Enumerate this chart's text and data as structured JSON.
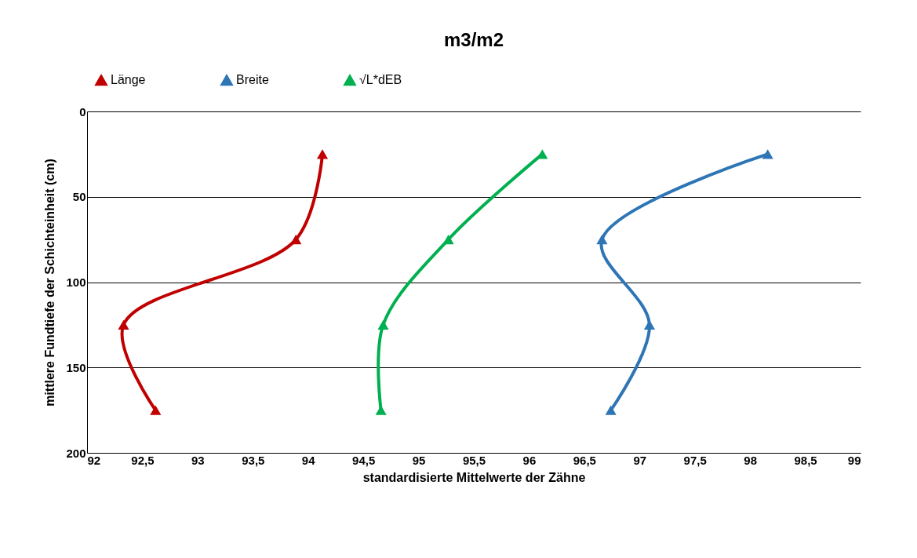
{
  "chart_data": {
    "type": "line",
    "title": "m3/m2",
    "xlabel": "standardisierte Mittelwerte der Zähne",
    "ylabel": "mittlere Fundtiefe der Schichteinheit (cm)",
    "series": [
      {
        "name": "Länge",
        "color": "#c00000",
        "x": [
          94.13,
          93.89,
          92.33,
          92.62
        ],
        "values": [
          25,
          75,
          125,
          175
        ]
      },
      {
        "name": "Breite",
        "color": "#2e75b6",
        "x": [
          98.16,
          96.66,
          97.09,
          96.74
        ],
        "values": [
          25,
          75,
          125,
          175
        ]
      },
      {
        "name": "√L*dEB",
        "color": "#00b050",
        "x": [
          96.12,
          95.27,
          94.68,
          94.66
        ],
        "values": [
          25,
          75,
          125,
          175
        ]
      }
    ],
    "xlim": [
      92,
      99
    ],
    "xticks": [
      92,
      {
        "value": 92.5,
        "label": "92,5"
      },
      93,
      {
        "value": 93.5,
        "label": "93,5"
      },
      94,
      {
        "value": 94.5,
        "label": "94,5"
      },
      95,
      {
        "value": 95.5,
        "label": "95,5"
      },
      96,
      {
        "value": 96.5,
        "label": "96,5"
      },
      97,
      {
        "value": 97.5,
        "label": "97,5"
      },
      98,
      {
        "value": 98.5,
        "label": "98,5"
      },
      99
    ],
    "ylim": [
      200,
      0
    ],
    "yticks": [
      0,
      50,
      100,
      150,
      200
    ],
    "grid": "y",
    "legend": "top",
    "marker": "triangle",
    "line_style": "solid"
  }
}
